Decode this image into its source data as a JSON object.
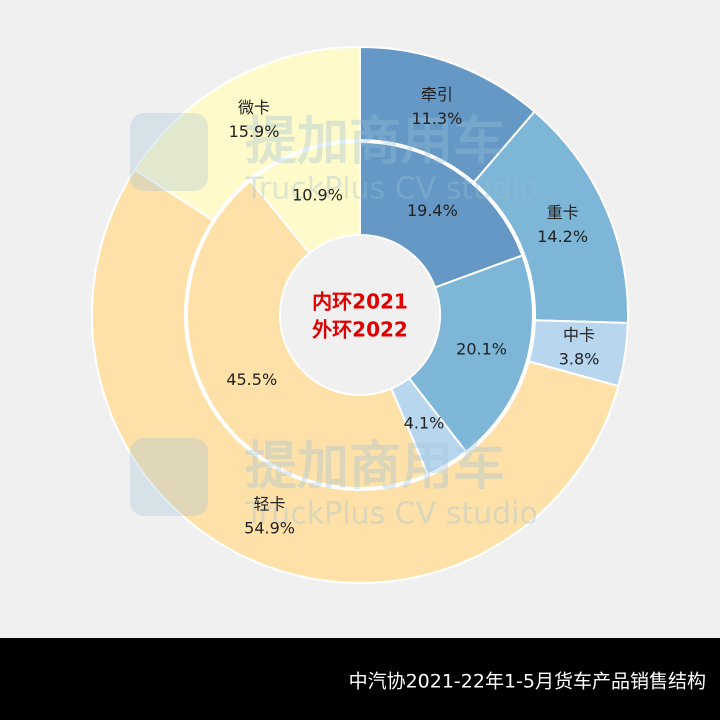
{
  "chart_data": {
    "type": "donut",
    "categories": [
      "牵引",
      "重卡",
      "中卡",
      "轻卡",
      "微卡"
    ],
    "colors": [
      "#6598c5",
      "#7db6d6",
      "#b8d7ef",
      "#fde1a9",
      "#fffac9"
    ],
    "rings": [
      {
        "label": "内环2021",
        "values": [
          19.4,
          20.1,
          4.1,
          45.5,
          10.9
        ],
        "value_labels": [
          "19.4%",
          "20.1%",
          "4.1%",
          "45.5%",
          "10.9%"
        ]
      },
      {
        "label": "外环2022",
        "values": [
          11.3,
          14.2,
          3.8,
          54.9,
          15.9
        ],
        "value_labels": [
          "11.3%",
          "14.2%",
          "3.8%",
          "54.9%",
          "15.9%"
        ]
      }
    ],
    "watermark": {
      "title": "提加商用车",
      "subtitle": "TruckPlus CV studio"
    },
    "caption": "中汽协2021-22年1-5月货车产品销售结构"
  }
}
